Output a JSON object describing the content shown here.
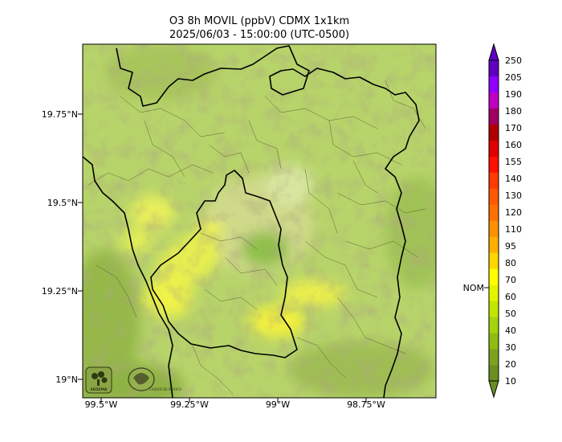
{
  "title": {
    "line1": "O3 8h MOVIL (ppbV) CDMX 1x1km",
    "line2": "2025/06/03 - 15:00:00 (UTC-0500)"
  },
  "axes": {
    "lat_ticks": [
      "19.75°N",
      "19.5°N",
      "19.25°N",
      "19°N"
    ],
    "lon_ticks": [
      "99.5°W",
      "99.25°W",
      "99°W",
      "98.75°W"
    ]
  },
  "colorbar": {
    "nom_label": "NOM",
    "levels": [
      "10",
      "20",
      "30",
      "40",
      "50",
      "60",
      "70",
      "80",
      "95",
      "110",
      "120",
      "130",
      "140",
      "155",
      "160",
      "170",
      "180",
      "190",
      "205",
      "250"
    ],
    "colors": [
      "#6b8e23",
      "#7da21f",
      "#8fbc13",
      "#a6d30c",
      "#c2e600",
      "#e4f400",
      "#ffff00",
      "#ffd700",
      "#ffb000",
      "#ff9000",
      "#ff7000",
      "#ff5a00",
      "#ff3a00",
      "#ff1000",
      "#e00000",
      "#b00000",
      "#a00060",
      "#c000c0",
      "#9000ff",
      "#6000c0"
    ]
  },
  "logos": [
    {
      "icon": "sedema-logo",
      "text": "SEDEMA"
    },
    {
      "icon": "mexico-city-seal",
      "text": "CIUDAD DE MÉXICO"
    }
  ]
}
